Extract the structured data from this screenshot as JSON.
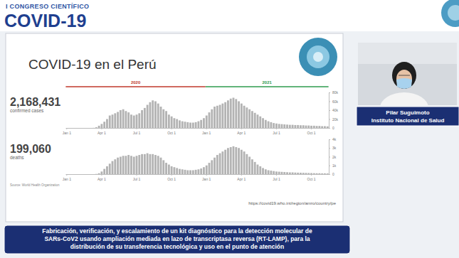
{
  "header": {
    "kicker": "I CONGRESO CIENTÍFICO",
    "title": "COVID-19"
  },
  "slide": {
    "title": "COVID-19 en el Perú",
    "periods": [
      "2020",
      "2021"
    ],
    "source": "Source: World Health Organization",
    "url": "https://covid19.who.int/region/amro/country/pe"
  },
  "chart_data": [
    {
      "type": "bar",
      "title": "2,168,431",
      "subtitle": "confirmed cases",
      "color": "#b3b3b3",
      "categories": [
        "Jan 1",
        null,
        null,
        null,
        null,
        null,
        null,
        null,
        null,
        null,
        null,
        null,
        null,
        "Apr 1",
        null,
        null,
        null,
        null,
        null,
        null,
        null,
        null,
        null,
        null,
        null,
        null,
        "Jul 1",
        null,
        null,
        null,
        null,
        null,
        null,
        null,
        null,
        null,
        null,
        null,
        null,
        "Oct 1",
        null,
        null,
        null,
        null,
        null,
        null,
        null,
        null,
        null,
        null,
        null,
        null,
        "Jan 1",
        null,
        null,
        null,
        null,
        null,
        null,
        null,
        null,
        null,
        null,
        null,
        null,
        "Apr 1",
        null,
        null,
        null,
        null,
        null,
        null,
        null,
        null,
        null,
        null,
        null,
        null,
        "Jul 1",
        null,
        null,
        null,
        null,
        null,
        null,
        null,
        null,
        null,
        null,
        null,
        null,
        "Oct 1",
        null,
        null,
        null,
        null,
        null,
        null
      ],
      "values": [
        0,
        0,
        0,
        0,
        0,
        0,
        0,
        0,
        0,
        0,
        200,
        1500,
        5000,
        9000,
        14000,
        20000,
        28000,
        30000,
        33000,
        36000,
        40000,
        42000,
        38000,
        35000,
        30000,
        28000,
        30000,
        33000,
        40000,
        45000,
        52000,
        58000,
        62000,
        60000,
        55000,
        48000,
        42000,
        38000,
        30000,
        26000,
        22000,
        20000,
        17000,
        15000,
        14000,
        13000,
        12000,
        12000,
        13000,
        15000,
        18000,
        22000,
        28000,
        35000,
        42000,
        48000,
        50000,
        52000,
        55000,
        58000,
        62000,
        66000,
        68000,
        65000,
        60000,
        55000,
        50000,
        46000,
        42000,
        38000,
        34000,
        30000,
        26000,
        22000,
        18000,
        15000,
        13000,
        11000,
        10000,
        9000,
        8500,
        8000,
        7500,
        7000,
        7000,
        6500,
        6500,
        6000,
        6000,
        5500,
        5500,
        5000,
        5000,
        4500,
        4500,
        4000,
        4000,
        3500
      ],
      "ylim": [
        0,
        80000
      ],
      "yticks": [
        0,
        {
          "value": 20000,
          "label": "20k"
        },
        {
          "value": 40000,
          "label": "40k"
        },
        {
          "value": 60000,
          "label": "60k"
        },
        {
          "value": 80000,
          "label": "80k"
        }
      ]
    },
    {
      "type": "bar",
      "title": "199,060",
      "subtitle": "deaths",
      "color": "#b3b3b3",
      "categories": [
        "Jan 1",
        null,
        null,
        null,
        null,
        null,
        null,
        null,
        null,
        null,
        null,
        null,
        null,
        "Apr 1",
        null,
        null,
        null,
        null,
        null,
        null,
        null,
        null,
        null,
        null,
        null,
        null,
        "Jul 1",
        null,
        null,
        null,
        null,
        null,
        null,
        null,
        null,
        null,
        null,
        null,
        null,
        "Oct 1",
        null,
        null,
        null,
        null,
        null,
        null,
        null,
        null,
        null,
        null,
        null,
        null,
        "Jan 1",
        null,
        null,
        null,
        null,
        null,
        null,
        null,
        null,
        null,
        null,
        null,
        null,
        "Apr 1",
        null,
        null,
        null,
        null,
        null,
        null,
        null,
        null,
        null,
        null,
        null,
        null,
        "Jul 1",
        null,
        null,
        null,
        null,
        null,
        null,
        null,
        null,
        null,
        null,
        null,
        null,
        "Oct 1",
        null,
        null,
        null,
        null,
        null,
        null
      ],
      "values": [
        0,
        0,
        0,
        0,
        0,
        0,
        0,
        0,
        0,
        0,
        0,
        20,
        100,
        300,
        600,
        900,
        1200,
        1500,
        1700,
        1900,
        2000,
        2100,
        2100,
        2200,
        2100,
        2000,
        2100,
        2200,
        2300,
        2300,
        2400,
        2300,
        2300,
        2200,
        2100,
        1900,
        1600,
        1300,
        1100,
        900,
        800,
        700,
        600,
        550,
        500,
        450,
        450,
        450,
        500,
        550,
        650,
        800,
        1000,
        1300,
        1600,
        1900,
        2200,
        2400,
        2600,
        2800,
        3000,
        3100,
        3200,
        3100,
        3000,
        2800,
        2600,
        2300,
        2000,
        1700,
        1400,
        1100,
        900,
        700,
        550,
        450,
        400,
        350,
        300,
        280,
        260,
        240,
        220,
        200,
        200,
        180,
        170,
        160,
        150,
        140,
        130,
        120,
        110,
        100,
        100,
        90,
        90,
        80
      ],
      "ylim": [
        0,
        4000
      ],
      "yticks": [
        0,
        {
          "value": 1000,
          "label": "1k"
        },
        {
          "value": 2000,
          "label": "2k"
        },
        {
          "value": 3000,
          "label": "3k"
        },
        {
          "value": 4000,
          "label": "4k"
        }
      ]
    }
  ],
  "speaker": {
    "name": "Pilar Suguimoto",
    "institution": "Instituto Nacional de Salud"
  },
  "footer": {
    "lines": [
      "Fabricación, verificación, y escalamiento de un kit diagnóstico para la detección molecular de",
      "SARs-CoV2 usando ampliación mediada en lazo de transcriptasa reversa (RT-LAMP), para la",
      "distribución de su transferencia tecnológica y uso en el punto de atención"
    ]
  }
}
